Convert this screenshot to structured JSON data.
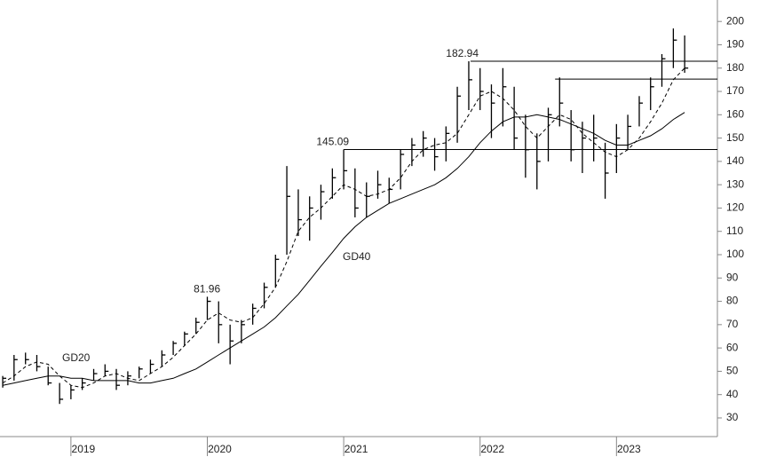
{
  "chart_data": {
    "type": "ohlc",
    "x": [
      2018.5,
      2018.583,
      2018.667,
      2018.75,
      2018.833,
      2018.917,
      2019,
      2019.083,
      2019.167,
      2019.25,
      2019.333,
      2019.417,
      2019.5,
      2019.583,
      2019.667,
      2019.75,
      2019.833,
      2019.917,
      2020,
      2020.083,
      2020.167,
      2020.25,
      2020.333,
      2020.417,
      2020.5,
      2020.583,
      2020.667,
      2020.75,
      2020.833,
      2020.917,
      2021,
      2021.083,
      2021.167,
      2021.25,
      2021.333,
      2021.417,
      2021.5,
      2021.583,
      2021.667,
      2021.75,
      2021.833,
      2021.917,
      2022,
      2022.083,
      2022.167,
      2022.25,
      2022.333,
      2022.417,
      2022.5,
      2022.583,
      2022.667,
      2022.75,
      2022.833,
      2022.917,
      2023,
      2023.083,
      2023.167,
      2023.25,
      2023.333,
      2023.417,
      2023.5
    ],
    "high": [
      48,
      57,
      58,
      57,
      52,
      45,
      44,
      47,
      51,
      53,
      51,
      50,
      52,
      55,
      59,
      63,
      67,
      73,
      81.96,
      80,
      70,
      72,
      79,
      88,
      100,
      138,
      128,
      125,
      130,
      137,
      145.09,
      137,
      131,
      136,
      133,
      145,
      150,
      153,
      150,
      155,
      172,
      182.94,
      180,
      173,
      180,
      172,
      160,
      152,
      163,
      176,
      162,
      157,
      160,
      148,
      156,
      160,
      168,
      176,
      186,
      197,
      194
    ],
    "low": [
      43,
      46,
      53,
      50,
      44,
      36,
      38,
      42,
      46,
      48,
      42,
      44,
      47,
      49,
      52,
      57,
      61,
      66,
      72,
      62,
      53,
      62,
      70,
      77,
      86,
      100,
      108,
      106,
      115,
      124,
      128,
      116,
      116,
      124,
      122,
      128,
      138,
      142,
      136,
      140,
      148,
      162,
      162,
      150,
      155,
      145,
      133,
      128,
      140,
      155,
      140,
      135,
      140,
      124,
      135,
      145,
      155,
      162,
      172,
      180,
      178
    ],
    "close": [
      47,
      55,
      55,
      52,
      45,
      38,
      42,
      45,
      49,
      50,
      44,
      48,
      51,
      53,
      57,
      62,
      66,
      71,
      80,
      70,
      63,
      70,
      77,
      86,
      98,
      125,
      115,
      120,
      127,
      133,
      136,
      120,
      125,
      130,
      128,
      143,
      147,
      150,
      142,
      152,
      168,
      175,
      170,
      165,
      172,
      150,
      145,
      140,
      160,
      165,
      145,
      150,
      150,
      135,
      150,
      155,
      165,
      172,
      184,
      192,
      180
    ],
    "series": [
      {
        "name": "GD20",
        "color": "#000000",
        "dashed": true,
        "values": [
          45,
          48,
          52,
          54,
          53,
          48,
          44,
          43,
          45,
          48,
          49,
          47,
          46,
          49,
          52,
          56,
          61,
          66,
          72,
          75,
          72,
          71,
          73,
          79,
          86,
          97,
          110,
          116,
          120,
          125,
          130,
          128,
          125,
          126,
          128,
          133,
          140,
          145,
          147,
          148,
          152,
          160,
          168,
          170,
          167,
          162,
          155,
          150,
          155,
          160,
          158,
          152,
          148,
          144,
          142,
          145,
          150,
          157,
          165,
          175,
          180
        ]
      },
      {
        "name": "GD40",
        "color": "#000000",
        "dashed": false,
        "values": [
          44,
          45,
          46,
          47,
          48,
          48,
          47,
          47,
          46,
          46,
          46,
          46,
          45,
          45,
          46,
          47,
          49,
          51,
          54,
          57,
          60,
          63,
          66,
          69,
          73,
          78,
          83,
          89,
          95,
          101,
          107,
          112,
          116,
          119,
          122,
          124,
          126,
          128,
          130,
          133,
          137,
          142,
          148,
          153,
          157,
          159,
          159,
          160,
          159,
          158,
          156,
          154,
          152,
          149,
          147,
          147,
          149,
          151,
          154,
          158,
          161
        ]
      }
    ],
    "annotations": [
      {
        "value": 81.96,
        "x": 2019.9
      },
      {
        "value": 145.09,
        "x": 2020.8
      },
      {
        "value": 182.94,
        "x": 2021.75
      }
    ],
    "levels": [
      {
        "value": 182.94,
        "x": 2021.93
      },
      {
        "value": 175.3,
        "x": 2022.55
      },
      {
        "value": 145.09,
        "x": 2021.0
      }
    ],
    "color": "#000000",
    "xlim": [
      2018.48,
      2023.74
    ],
    "xticks": [
      2019,
      2020,
      2021,
      2022,
      2023
    ],
    "ylim": [
      22,
      209.2
    ],
    "yticks": [
      30,
      40,
      50,
      60,
      70,
      80,
      90,
      100,
      110,
      120,
      130,
      140,
      150,
      160,
      170,
      180,
      190,
      200
    ]
  }
}
